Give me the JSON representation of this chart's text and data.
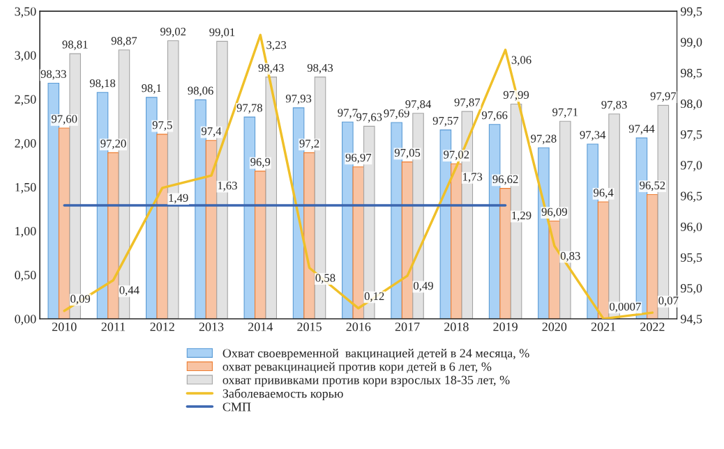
{
  "chart_data": {
    "type": "bar",
    "categories": [
      "2010",
      "2011",
      "2012",
      "2013",
      "2014",
      "2015",
      "2016",
      "2017",
      "2018",
      "2019",
      "2020",
      "2021",
      "2022"
    ],
    "series": [
      {
        "name": "Охват своевременной  вакцинацией детей в 24 месяца, %",
        "axis": "y2",
        "color": "#a9d1f5",
        "values": [
          98.33,
          98.18,
          98.1,
          98.06,
          97.78,
          97.93,
          97.7,
          97.69,
          97.57,
          97.66,
          97.28,
          97.34,
          97.44
        ],
        "value_labels": [
          "98,33",
          "98,18",
          "98,1",
          "98,06",
          "97,78",
          "97,93",
          "97,7",
          "97,69",
          "97,57",
          "97,66",
          "97,28",
          "97,34",
          "97,44"
        ]
      },
      {
        "name": "охват ревакцинацией против кори детей в 6 лет, %",
        "axis": "y2",
        "color": "#f8c3a3",
        "values": [
          97.6,
          97.2,
          97.5,
          97.4,
          96.9,
          97.2,
          96.97,
          97.05,
          97.02,
          96.62,
          96.09,
          96.4,
          96.52
        ],
        "value_labels": [
          "97,60",
          "97,20",
          "97,5",
          "97,4",
          "96,9",
          "97,2",
          "96,97",
          "97,05",
          "97,02",
          "96,62",
          "96,09",
          "96,4",
          "96,52"
        ]
      },
      {
        "name": "охват прививками против кори взрослых 18-35 лет, %",
        "axis": "y2",
        "color": "#e2e2e2",
        "values": [
          98.81,
          98.87,
          99.02,
          99.01,
          98.43,
          98.43,
          97.63,
          97.84,
          97.87,
          97.99,
          97.71,
          97.83,
          97.97
        ],
        "value_labels": [
          "98,81",
          "98,87",
          "99,02",
          "99,01",
          "98,43",
          "98,43",
          "97,63",
          "97,84",
          "97,87",
          "97,99",
          "97,71",
          "97,83",
          "97,97"
        ]
      },
      {
        "name": "Заболеваемость корью",
        "type": "line",
        "color": "#f0c028",
        "values": [
          0.09,
          0.44,
          1.49,
          1.63,
          3.23,
          0.58,
          0.12,
          0.49,
          1.73,
          3.06,
          0.83,
          0.0007,
          0.07
        ],
        "value_labels": [
          "0,09",
          "0,44",
          "1,49",
          "1,63",
          "3,23",
          "0,58",
          "0,12",
          "0,49",
          "1,73",
          "3,06",
          "0,83",
          "0,0007",
          "0,07"
        ]
      },
      {
        "name": "СМП",
        "type": "line",
        "color": "#3b66b0",
        "values": [
          1.29,
          1.29,
          1.29,
          1.29,
          1.29,
          1.29,
          1.29,
          1.29,
          1.29,
          1.29,
          null,
          null,
          null
        ],
        "value_labels": [
          null,
          null,
          null,
          null,
          null,
          null,
          null,
          null,
          null,
          "1,29",
          null,
          null,
          null
        ]
      }
    ],
    "ylim": [
      0,
      3.5
    ],
    "yticks": [
      {
        "value": 0,
        "label": "0,00"
      },
      {
        "value": 0.5,
        "label": "0,50"
      },
      {
        "value": 1,
        "label": "1,00"
      },
      {
        "value": 1.5,
        "label": "1,50"
      },
      {
        "value": 2,
        "label": "2,00"
      },
      {
        "value": 2.5,
        "label": "2,50"
      },
      {
        "value": 3,
        "label": "3,00"
      },
      {
        "value": 3.5,
        "label": "3,50"
      }
    ],
    "y2lim": [
      94.5,
      99.5
    ],
    "y2ticks": [
      {
        "value": 94.5,
        "label": "94,5"
      },
      {
        "value": 95,
        "label": "95,0"
      },
      {
        "value": 95.5,
        "label": "95,5"
      },
      {
        "value": 96,
        "label": "96,0"
      },
      {
        "value": 96.5,
        "label": "96,5"
      },
      {
        "value": 97,
        "label": "97,0"
      },
      {
        "value": 97.5,
        "label": "97,5"
      },
      {
        "value": 98,
        "label": "98,0"
      },
      {
        "value": 98.5,
        "label": "98,5"
      },
      {
        "value": 99,
        "label": "99,0"
      },
      {
        "value": 99.5,
        "label": "99,5"
      }
    ],
    "legend": "bottom",
    "grid": false
  }
}
